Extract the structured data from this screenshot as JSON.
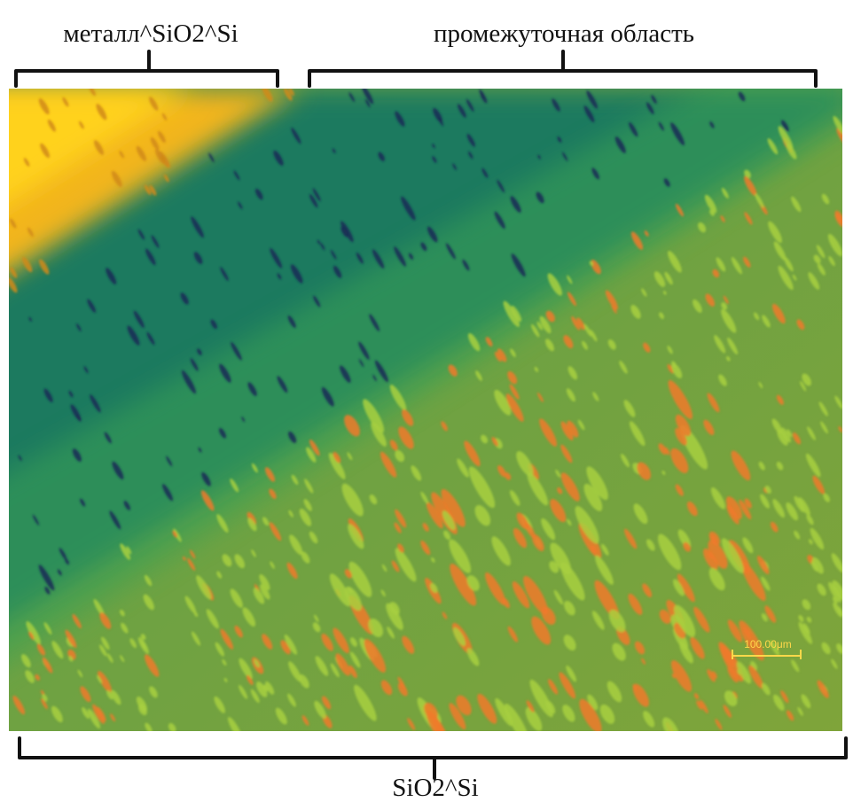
{
  "labels": {
    "top_left": "металл^SiO2^Si",
    "top_right": "промежуточная область",
    "bottom": "SiO2^Si"
  },
  "scale_bar": {
    "label": "100.00μm"
  }
}
